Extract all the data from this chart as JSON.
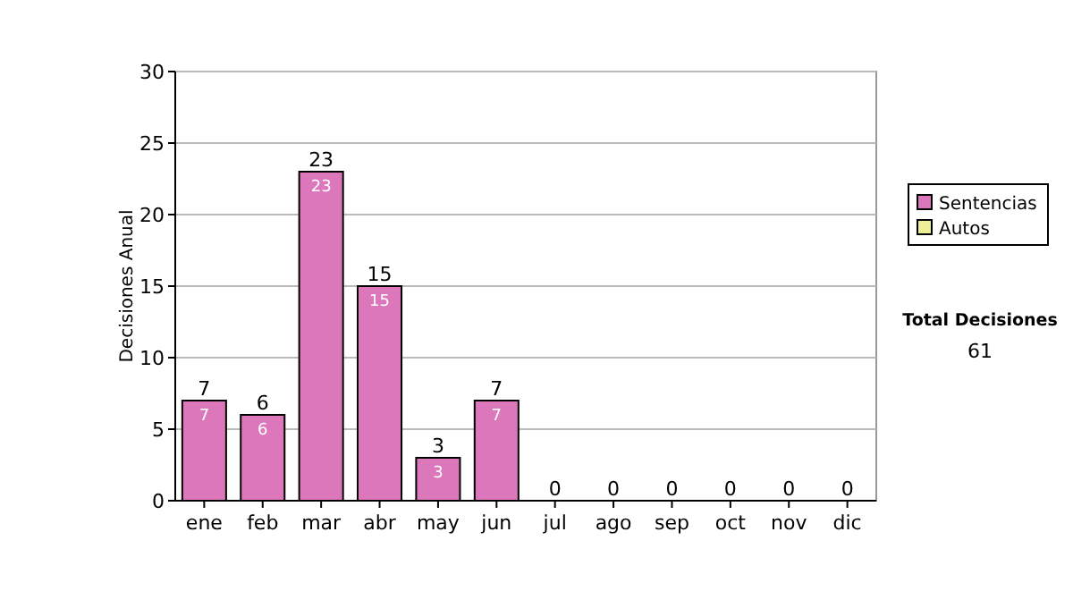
{
  "chart_data": {
    "type": "bar",
    "ylabel": "Decisiones Anual",
    "categories": [
      "ene",
      "feb",
      "mar",
      "abr",
      "may",
      "jun",
      "jul",
      "ago",
      "sep",
      "oct",
      "nov",
      "dic"
    ],
    "series": [
      {
        "name": "Sentencias",
        "color": "#dd77bb",
        "values": [
          7,
          6,
          23,
          15,
          3,
          7,
          0,
          0,
          0,
          0,
          0,
          0
        ],
        "value_labels": [
          "7",
          "6",
          "23",
          "15",
          "3",
          "7",
          null,
          null,
          null,
          null,
          null,
          null
        ]
      },
      {
        "name": "Autos",
        "color": "#eeee99",
        "values": [
          0,
          0,
          0,
          0,
          0,
          0,
          0,
          0,
          0,
          0,
          0,
          0
        ]
      }
    ],
    "stacked": true,
    "totals": [
      "7",
      "6",
      "23",
      "15",
      "3",
      "7",
      "0",
      "0",
      "0",
      "0",
      "0",
      "0"
    ],
    "ylim": [
      0,
      30
    ],
    "yticks": [
      0,
      5,
      10,
      15,
      20,
      25,
      30
    ],
    "grid": "y",
    "legend": "right",
    "annotations": [
      "Total Decisiones",
      "61"
    ]
  }
}
